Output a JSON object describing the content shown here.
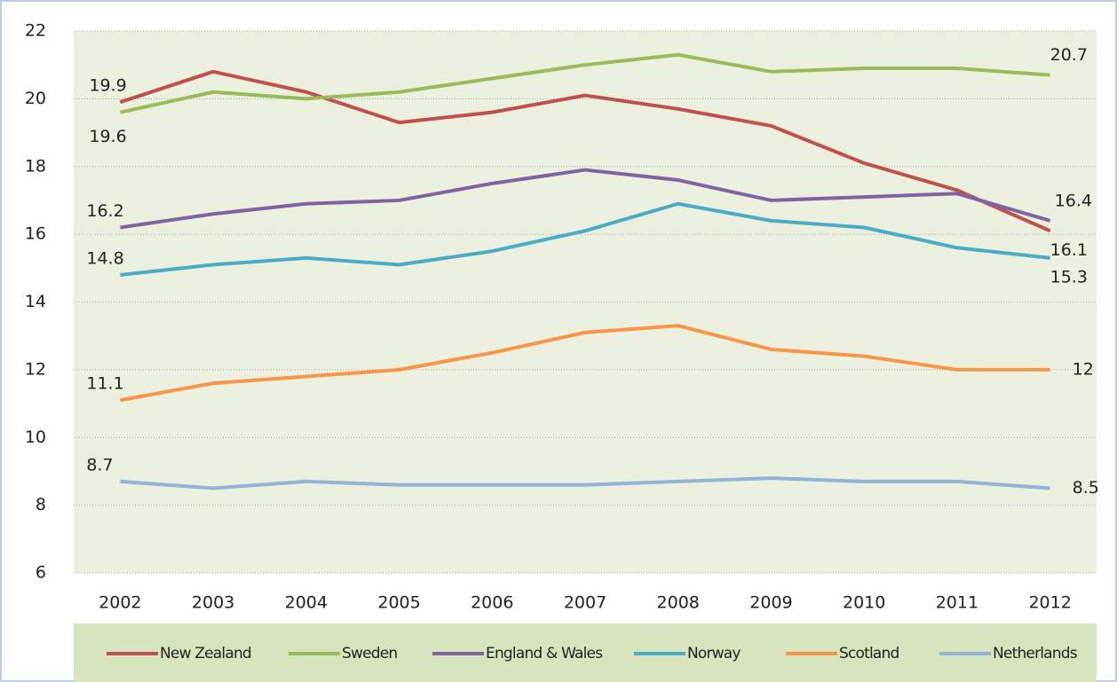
{
  "chart_data": {
    "type": "line",
    "categories": [
      "2002",
      "2003",
      "2004",
      "2005",
      "2006",
      "2007",
      "2008",
      "2009",
      "2010",
      "2011",
      "2012"
    ],
    "series": [
      {
        "name": "New Zealand",
        "color": "#c0504d",
        "values": [
          19.9,
          20.8,
          20.2,
          19.3,
          19.6,
          20.1,
          19.7,
          19.2,
          18.1,
          17.3,
          16.1
        ]
      },
      {
        "name": "Sweden",
        "color": "#9bbb59",
        "values": [
          19.6,
          20.2,
          20.0,
          20.2,
          20.6,
          21.0,
          21.3,
          20.8,
          20.9,
          20.9,
          20.7
        ]
      },
      {
        "name": "England & Wales",
        "color": "#8064a2",
        "values": [
          16.2,
          16.6,
          16.9,
          17.0,
          17.5,
          17.9,
          17.6,
          17.0,
          17.1,
          17.2,
          16.4
        ]
      },
      {
        "name": "Norway",
        "color": "#4bacc6",
        "values": [
          14.8,
          15.1,
          15.3,
          15.1,
          15.5,
          16.1,
          16.9,
          16.4,
          16.2,
          15.6,
          15.3
        ]
      },
      {
        "name": "Scotland",
        "color": "#f79646",
        "values": [
          11.1,
          11.6,
          11.8,
          12.0,
          12.5,
          13.1,
          13.3,
          12.6,
          12.4,
          12.0,
          12
        ]
      },
      {
        "name": "Netherlands",
        "color": "#95b3d7",
        "values": [
          8.7,
          8.5,
          8.7,
          8.6,
          8.6,
          8.6,
          8.7,
          8.8,
          8.7,
          8.7,
          8.5
        ]
      }
    ],
    "ylim": [
      6,
      22
    ],
    "yticks": [
      6,
      8,
      10,
      12,
      14,
      16,
      18,
      20,
      22
    ],
    "grid": true,
    "legend": "bottom"
  }
}
